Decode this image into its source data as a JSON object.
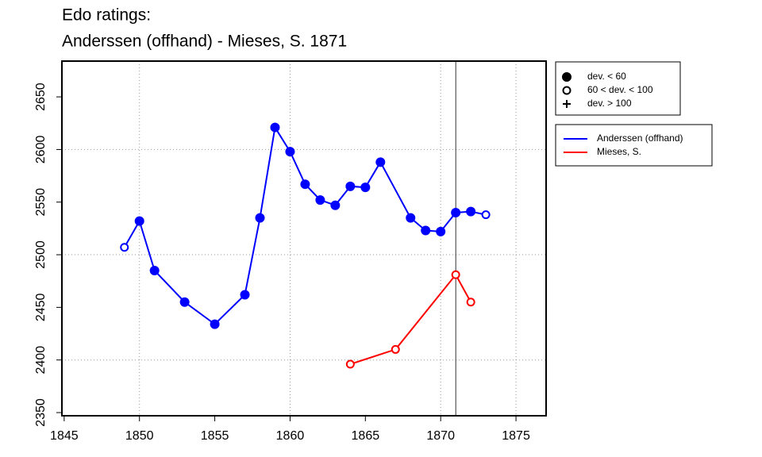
{
  "chart_data": {
    "type": "line",
    "title": "Edo ratings:",
    "subtitle": "Anderssen (offhand) - Mieses, S. 1871",
    "xlim": [
      1844.85,
      1877
    ],
    "ylim": [
      2347,
      2684
    ],
    "xticks": [
      1845,
      1850,
      1855,
      1860,
      1865,
      1870,
      1875
    ],
    "yticks": [
      2350,
      2400,
      2450,
      2500,
      2550,
      2600,
      2650
    ],
    "xgrid": [
      1850,
      1860,
      1870,
      1875
    ],
    "ygrid": [
      2400,
      2500,
      2600
    ],
    "vline": 1871,
    "marker_legend": [
      {
        "symbol": "filled",
        "label": "dev. < 60"
      },
      {
        "symbol": "open",
        "label": "60 < dev. < 100"
      },
      {
        "symbol": "plus",
        "label": "dev. > 100"
      }
    ],
    "series": [
      {
        "name": "Anderssen (offhand)",
        "color": "#0000ff",
        "x": [
          1849,
          1850,
          1851,
          1853,
          1855,
          1857,
          1858,
          1859,
          1860,
          1861,
          1862,
          1863,
          1864,
          1865,
          1866,
          1868,
          1869,
          1870,
          1871,
          1872,
          1873
        ],
        "values": [
          2507,
          2532,
          2485,
          2455,
          2434,
          2462,
          2535,
          2621,
          2598,
          2567,
          2552,
          2547,
          2565,
          2564,
          2588,
          2535,
          2523,
          2522,
          2540,
          2541,
          2538
        ],
        "markers": [
          "open",
          "filled",
          "filled",
          "filled",
          "filled",
          "filled",
          "filled",
          "filled",
          "filled",
          "filled",
          "filled",
          "filled",
          "filled",
          "filled",
          "filled",
          "filled",
          "filled",
          "filled",
          "filled",
          "filled",
          "open"
        ]
      },
      {
        "name": "Mieses, S.",
        "color": "#ff0000",
        "x": [
          1864,
          1867,
          1871,
          1872
        ],
        "values": [
          2396,
          2410,
          2481,
          2455
        ],
        "markers": [
          "open",
          "open",
          "open",
          "open"
        ]
      }
    ]
  }
}
